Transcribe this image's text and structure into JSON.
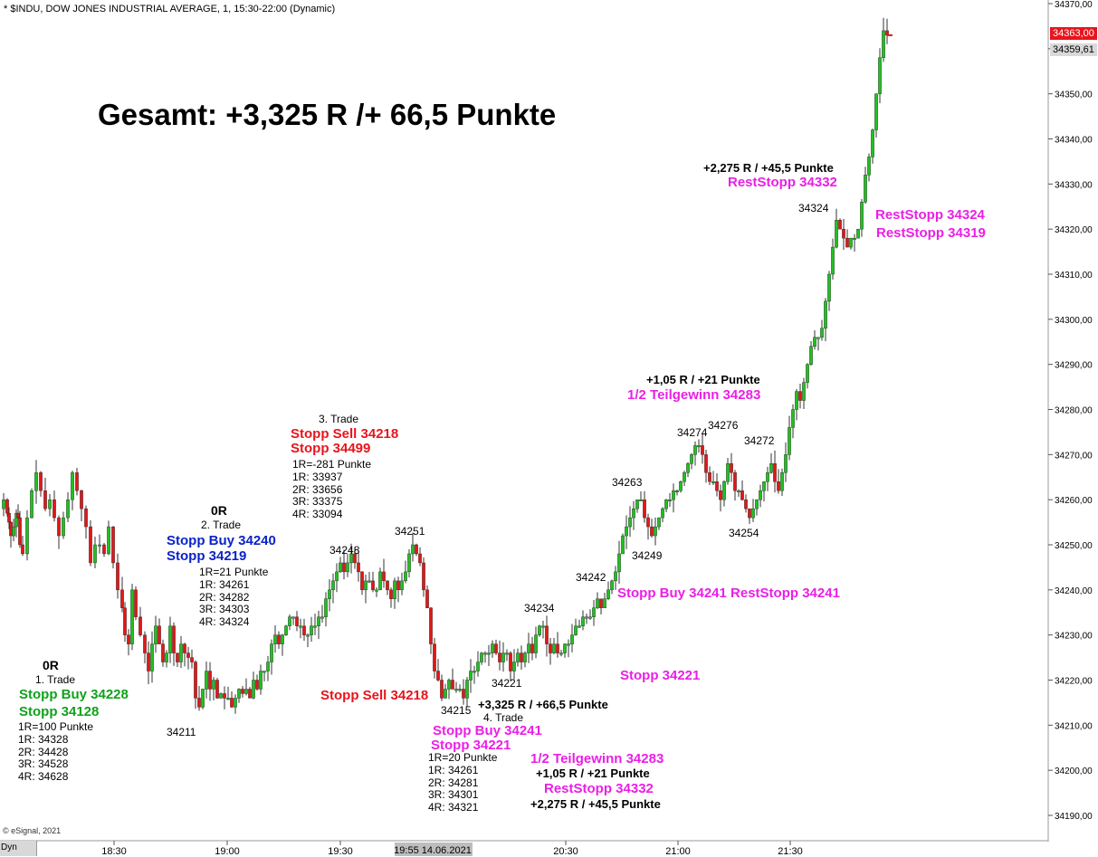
{
  "header": {
    "title": "* $INDU, DOW JONES INDUSTRIAL AVERAGE, 1, 15:30-22:00 (Dynamic)",
    "headline": "Gesamt: +3,325 R /+ 66,5 Punkte",
    "footer_left": "© eSignal, 2021",
    "dyn_label": "Dyn"
  },
  "chart_data": {
    "type": "candlestick",
    "ylim": [
      34185,
      34372
    ],
    "y_ticks": [
      {
        "value": 34370,
        "label": "34370,00"
      },
      {
        "value": 34360,
        "label": "34360,00"
      },
      {
        "value": 34350,
        "label": "34350,00"
      },
      {
        "value": 34340,
        "label": "34340,00"
      },
      {
        "value": 34330,
        "label": "34330,00"
      },
      {
        "value": 34320,
        "label": "34320,00"
      },
      {
        "value": 34310,
        "label": "34310,00"
      },
      {
        "value": 34300,
        "label": "34300,00"
      },
      {
        "value": 34290,
        "label": "34290,00"
      },
      {
        "value": 34280,
        "label": "34280,00"
      },
      {
        "value": 34270,
        "label": "34270,00"
      },
      {
        "value": 34260,
        "label": "34260,00"
      },
      {
        "value": 34250,
        "label": "34250,00"
      },
      {
        "value": 34240,
        "label": "34240,00"
      },
      {
        "value": 34230,
        "label": "34230,00"
      },
      {
        "value": 34220,
        "label": "34220,00"
      },
      {
        "value": 34210,
        "label": "34210,00"
      },
      {
        "value": 34200,
        "label": "34200,00"
      },
      {
        "value": 34190,
        "label": "34190,00"
      }
    ],
    "x_ticks": [
      {
        "time": "18:30",
        "label": "18:30"
      },
      {
        "time": "19:00",
        "label": "19:00"
      },
      {
        "time": "19:30",
        "label": "19:30"
      },
      {
        "time": "20:30",
        "label": "20:30"
      },
      {
        "time": "21:00",
        "label": "21:00"
      },
      {
        "time": "21:30",
        "label": "21:30"
      }
    ],
    "x_highlight": {
      "time": "19:55",
      "label": "19:55 14.06.2021"
    },
    "price_labels": [
      {
        "value": 34363.0,
        "label": "34363,00",
        "color": "#e8141c"
      },
      {
        "value": 34359.61,
        "label": "34359,61",
        "color": "#d9d9d9"
      }
    ],
    "path_points": [
      [
        0,
        34258
      ],
      [
        4,
        34260
      ],
      [
        8,
        34257
      ],
      [
        10,
        34255
      ],
      [
        12,
        34252
      ],
      [
        15,
        34254
      ],
      [
        18,
        34257
      ],
      [
        20,
        34256
      ],
      [
        22,
        34250
      ],
      [
        25,
        34248
      ],
      [
        30,
        34256
      ],
      [
        35,
        34262
      ],
      [
        40,
        34266
      ],
      [
        45,
        34262
      ],
      [
        50,
        34258
      ],
      [
        55,
        34260
      ],
      [
        60,
        34256
      ],
      [
        65,
        34252
      ],
      [
        70,
        34256
      ],
      [
        75,
        34260
      ],
      [
        80,
        34266
      ],
      [
        85,
        34262
      ],
      [
        90,
        34258
      ],
      [
        95,
        34254
      ],
      [
        100,
        34246
      ],
      [
        105,
        34250
      ],
      [
        110,
        34250
      ],
      [
        115,
        34248
      ],
      [
        120,
        34254
      ],
      [
        125,
        34246
      ],
      [
        130,
        34240
      ],
      [
        135,
        34236
      ],
      [
        138,
        34230
      ],
      [
        142,
        34228
      ],
      [
        146,
        34240
      ],
      [
        150,
        34234
      ],
      [
        155,
        34230
      ],
      [
        160,
        34226
      ],
      [
        164,
        34222
      ],
      [
        168,
        34228
      ],
      [
        172,
        34232
      ],
      [
        176,
        34228
      ],
      [
        180,
        34224
      ],
      [
        184,
        34226
      ],
      [
        188,
        34232
      ],
      [
        192,
        34226
      ],
      [
        196,
        34224
      ],
      [
        200,
        34228
      ],
      [
        204,
        34226
      ],
      [
        208,
        34225
      ],
      [
        212,
        34224
      ],
      [
        216,
        34216
      ],
      [
        220,
        34214
      ],
      [
        224,
        34218
      ],
      [
        228,
        34222
      ],
      [
        232,
        34218
      ],
      [
        236,
        34220
      ],
      [
        240,
        34216
      ],
      [
        244,
        34217
      ],
      [
        248,
        34216
      ],
      [
        252,
        34216
      ],
      [
        256,
        34214
      ],
      [
        260,
        34216
      ],
      [
        264,
        34218
      ],
      [
        268,
        34217
      ],
      [
        272,
        34218
      ],
      [
        276,
        34216
      ],
      [
        280,
        34220
      ],
      [
        284,
        34218
      ],
      [
        288,
        34222
      ],
      [
        292,
        34222
      ],
      [
        296,
        34224
      ],
      [
        300,
        34228
      ],
      [
        304,
        34230
      ],
      [
        308,
        34228
      ],
      [
        312,
        34230
      ],
      [
        316,
        34232
      ],
      [
        320,
        34234
      ],
      [
        324,
        34234
      ],
      [
        328,
        34232
      ],
      [
        332,
        34232
      ],
      [
        336,
        34230
      ],
      [
        340,
        34230
      ],
      [
        344,
        34232
      ],
      [
        348,
        34232
      ],
      [
        352,
        34234
      ],
      [
        356,
        34234
      ],
      [
        360,
        34238
      ],
      [
        364,
        34240
      ],
      [
        368,
        34242
      ],
      [
        372,
        34244
      ],
      [
        376,
        34246
      ],
      [
        380,
        34244
      ],
      [
        384,
        34246
      ],
      [
        388,
        34248
      ],
      [
        392,
        34246
      ],
      [
        396,
        34244
      ],
      [
        400,
        34240
      ],
      [
        404,
        34242
      ],
      [
        408,
        34242
      ],
      [
        412,
        34240
      ],
      [
        416,
        34240
      ],
      [
        420,
        34244
      ],
      [
        424,
        34242
      ],
      [
        428,
        34240
      ],
      [
        432,
        34238
      ],
      [
        436,
        34242
      ],
      [
        440,
        34240
      ],
      [
        444,
        34242
      ],
      [
        448,
        34244
      ],
      [
        452,
        34248
      ],
      [
        456,
        34250
      ],
      [
        460,
        34248
      ],
      [
        464,
        34246
      ],
      [
        468,
        34240
      ],
      [
        472,
        34236
      ],
      [
        476,
        34228
      ],
      [
        480,
        34222
      ],
      [
        484,
        34220
      ],
      [
        488,
        34216
      ],
      [
        492,
        34218
      ],
      [
        496,
        34220
      ],
      [
        500,
        34218
      ],
      [
        504,
        34218
      ],
      [
        508,
        34218
      ],
      [
        512,
        34216
      ],
      [
        516,
        34220
      ],
      [
        520,
        34222
      ],
      [
        524,
        34222
      ],
      [
        528,
        34224
      ],
      [
        532,
        34226
      ],
      [
        536,
        34226
      ],
      [
        540,
        34226
      ],
      [
        544,
        34228
      ],
      [
        548,
        34226
      ],
      [
        552,
        34224
      ],
      [
        556,
        34226
      ],
      [
        560,
        34226
      ],
      [
        564,
        34222
      ],
      [
        568,
        34224
      ],
      [
        572,
        34226
      ],
      [
        576,
        34224
      ],
      [
        580,
        34226
      ],
      [
        584,
        34228
      ],
      [
        588,
        34226
      ],
      [
        592,
        34230
      ],
      [
        596,
        34232
      ],
      [
        600,
        34232
      ],
      [
        604,
        34228
      ],
      [
        608,
        34226
      ],
      [
        612,
        34228
      ],
      [
        616,
        34226
      ],
      [
        620,
        34226
      ],
      [
        624,
        34228
      ],
      [
        628,
        34228
      ],
      [
        632,
        34230
      ],
      [
        636,
        34232
      ],
      [
        640,
        34232
      ],
      [
        644,
        34234
      ],
      [
        648,
        34234
      ],
      [
        652,
        34234
      ],
      [
        656,
        34236
      ],
      [
        660,
        34238
      ],
      [
        664,
        34236
      ],
      [
        668,
        34238
      ],
      [
        672,
        34240
      ],
      [
        676,
        34242
      ],
      [
        680,
        34244
      ],
      [
        684,
        34248
      ],
      [
        688,
        34252
      ],
      [
        692,
        34254
      ],
      [
        696,
        34256
      ],
      [
        700,
        34258
      ],
      [
        704,
        34260
      ],
      [
        708,
        34260
      ],
      [
        712,
        34256
      ],
      [
        716,
        34254
      ],
      [
        720,
        34252
      ],
      [
        724,
        34254
      ],
      [
        728,
        34256
      ],
      [
        732,
        34258
      ],
      [
        736,
        34260
      ],
      [
        740,
        34260
      ],
      [
        744,
        34262
      ],
      [
        748,
        34262
      ],
      [
        752,
        34264
      ],
      [
        756,
        34266
      ],
      [
        760,
        34268
      ],
      [
        764,
        34270
      ],
      [
        768,
        34272
      ],
      [
        772,
        34272
      ],
      [
        776,
        34270
      ],
      [
        780,
        34266
      ],
      [
        784,
        34264
      ],
      [
        788,
        34264
      ],
      [
        792,
        34262
      ],
      [
        796,
        34260
      ],
      [
        800,
        34264
      ],
      [
        804,
        34268
      ],
      [
        808,
        34266
      ],
      [
        812,
        34262
      ],
      [
        816,
        34262
      ],
      [
        820,
        34260
      ],
      [
        824,
        34258
      ],
      [
        828,
        34256
      ],
      [
        832,
        34258
      ],
      [
        836,
        34260
      ],
      [
        840,
        34262
      ],
      [
        844,
        34264
      ],
      [
        848,
        34266
      ],
      [
        852,
        34268
      ],
      [
        856,
        34264
      ],
      [
        860,
        34262
      ],
      [
        864,
        34266
      ],
      [
        868,
        34270
      ],
      [
        872,
        34276
      ],
      [
        876,
        34280
      ],
      [
        880,
        34284
      ],
      [
        884,
        34282
      ],
      [
        888,
        34286
      ],
      [
        892,
        34290
      ],
      [
        896,
        34294
      ],
      [
        900,
        34296
      ],
      [
        904,
        34296
      ],
      [
        908,
        34298
      ],
      [
        912,
        34304
      ],
      [
        916,
        34310
      ],
      [
        920,
        34316
      ],
      [
        924,
        34322
      ],
      [
        928,
        34320
      ],
      [
        932,
        34318
      ],
      [
        936,
        34316
      ],
      [
        940,
        34318
      ],
      [
        944,
        34318
      ],
      [
        948,
        34320
      ],
      [
        952,
        34326
      ],
      [
        956,
        34332
      ],
      [
        960,
        34336
      ],
      [
        964,
        34342
      ],
      [
        968,
        34350
      ],
      [
        972,
        34358
      ],
      [
        976,
        34364
      ],
      [
        980,
        34363
      ]
    ]
  },
  "annotations": {
    "trade1": {
      "zero_r": "0R",
      "name": "1. Trade",
      "buy": "Stopp Buy 34228",
      "stop": "Stopp 34128",
      "r_points": "1R=100 Punkte",
      "r1": "1R: 34328",
      "r2": "2R: 34428",
      "r3": "3R: 34528",
      "r4": "4R: 34628"
    },
    "trade2": {
      "zero_r": "0R",
      "name": "2. Trade",
      "buy": "Stopp Buy 34240",
      "stop": "Stopp 34219",
      "r_points": "1R=21 Punkte",
      "r1": "1R: 34261",
      "r2": "2R: 34282",
      "r3": "3R: 34303",
      "r4": "4R: 34324"
    },
    "trade3": {
      "name": "3. Trade",
      "sell": "Stopp Sell 34218",
      "stop": "Stopp 34499",
      "r_points": "1R=-281 Punkte",
      "r1": "1R: 33937",
      "r2": "2R: 33656",
      "r3": "3R: 33375",
      "r4": "4R: 33094"
    },
    "trade4": {
      "result": "+3,325 R / +66,5 Punkte",
      "name": "4. Trade",
      "buy": "Stopp Buy 34241",
      "stop": "Stopp 34221",
      "r_points": "1R=20 Punkte",
      "r1": "1R: 34261",
      "r2": "2R: 34281",
      "r3": "3R: 34301",
      "r4": "4R: 34321",
      "partial": "1/2 Teilgewinn 34283",
      "partial_result": "+1,05 R / +21 Punkte",
      "reststop": "RestStopp 34332",
      "rest_result": "+2,275 R / +45,5 Punkte"
    },
    "chart_labels": {
      "stopp_sell_mid": "Stopp Sell 34218",
      "buy_reststopp": "Stopp Buy 34241 RestStopp 34241",
      "stopp_34221": "Stopp 34221",
      "partial_result_top": "+1,05 R / +21 Punkte",
      "partial_top": "1/2 Teilgewinn 34283",
      "rest_result_top": "+2,275 R / +45,5 Punkte",
      "reststopp_top": "RestStopp 34332",
      "reststopp_34324": "RestStopp 34324",
      "reststopp_34319": "RestStopp 34319"
    },
    "price_marks": [
      {
        "label": "34211",
        "value": 34211
      },
      {
        "label": "34248",
        "value": 34248
      },
      {
        "label": "34251",
        "value": 34251
      },
      {
        "label": "34215",
        "value": 34215
      },
      {
        "label": "34221",
        "value": 34221
      },
      {
        "label": "34234",
        "value": 34234
      },
      {
        "label": "34242",
        "value": 34242
      },
      {
        "label": "34263",
        "value": 34263
      },
      {
        "label": "34249",
        "value": 34249
      },
      {
        "label": "34274",
        "value": 34274
      },
      {
        "label": "34276",
        "value": 34276
      },
      {
        "label": "34272",
        "value": 34272
      },
      {
        "label": "34254",
        "value": 34254
      },
      {
        "label": "34324",
        "value": 34324
      }
    ]
  }
}
